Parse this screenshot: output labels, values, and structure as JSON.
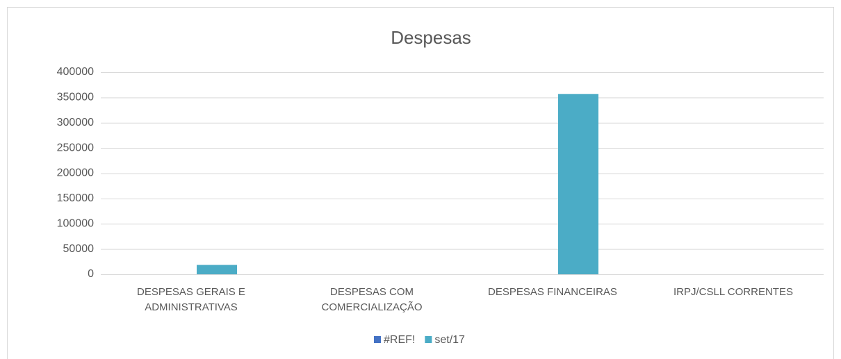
{
  "chart_data": {
    "type": "bar",
    "title": "Despesas",
    "categories": [
      "DESPESAS GERAIS E ADMINISTRATIVAS",
      "DESPESAS COM COMERCIALIZAÇÃO",
      "DESPESAS FINANCEIRAS",
      "IRPJ/CSLL CORRENTES"
    ],
    "series": [
      {
        "name": "#REF!",
        "color": "#4472c4",
        "values": [
          0,
          0,
          0,
          0
        ]
      },
      {
        "name": "set/17",
        "color": "#4bacc6",
        "values": [
          18500,
          0,
          357000,
          0
        ]
      }
    ],
    "ylim": [
      0,
      400000
    ],
    "yticks": [
      0,
      50000,
      100000,
      150000,
      200000,
      250000,
      300000,
      350000,
      400000
    ],
    "grid": true,
    "legend": "bottom"
  }
}
